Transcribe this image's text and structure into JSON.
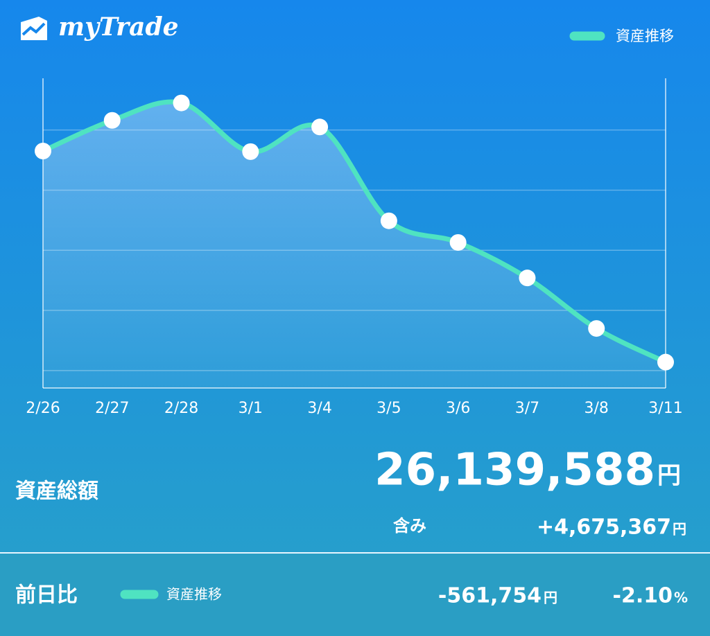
{
  "app": {
    "name": "myTrade"
  },
  "chart_data": {
    "type": "line",
    "categories": [
      "2/26",
      "2/27",
      "2/28",
      "3/1",
      "3/4",
      "3/5",
      "3/6",
      "3/7",
      "3/8",
      "3/11"
    ],
    "series": [
      {
        "name": "資産推移",
        "color": "#4fe3c1",
        "values": [
          29650000,
          30160000,
          30450000,
          29640000,
          30050000,
          28490000,
          28130000,
          27540000,
          26700000,
          26140000
        ]
      }
    ],
    "ylim": [
      25710000,
      30860000
    ],
    "gridlines": [
      26000000,
      27000000,
      28000000,
      29000000,
      30000000
    ],
    "legend": "top-right"
  },
  "summary": {
    "total_label": "資産総額",
    "total": "26,139,588",
    "total_unit": "円",
    "unrealized_label": "含み",
    "unrealized": "+4,675,367",
    "unrealized_unit": "円",
    "change_label": "前日比",
    "change_legend": "資産推移",
    "change": "-561,754",
    "change_unit": "円",
    "change_pct": "-2.10",
    "change_pct_unit": "%"
  }
}
